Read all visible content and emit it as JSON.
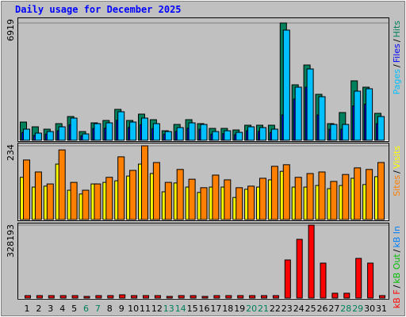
{
  "title": "Daily usage for December 2025",
  "chart_data": [
    {
      "type": "bar",
      "ylim": [
        0,
        6919
      ],
      "yticks": [
        6919
      ],
      "legend_separator": "/",
      "series": [
        {
          "name": "Hits",
          "color": "#00805c",
          "values": [
            1075,
            795,
            655,
            982,
            1402,
            514,
            1028,
            1169,
            1823,
            1169,
            1543,
            1215,
            561,
            935,
            1215,
            982,
            701,
            701,
            608,
            888,
            888,
            888,
            6919,
            3272,
            4441,
            2711,
            982,
            1636,
            3506,
            3132,
            1589
          ]
        },
        {
          "name": "Files",
          "color": "#0000ff",
          "values": [
            460,
            290,
            360,
            560,
            920,
            260,
            690,
            720,
            1180,
            750,
            920,
            690,
            360,
            520,
            720,
            650,
            360,
            390,
            330,
            560,
            520,
            460,
            1496,
            2431,
            3132,
            1496,
            650,
            650,
            2030,
            2130,
            980
          ]
        },
        {
          "name": "Pages",
          "color": "#00c0ff",
          "values": [
            655,
            421,
            514,
            795,
            1309,
            374,
            982,
            1028,
            1683,
            1075,
            1309,
            982,
            514,
            748,
            1028,
            935,
            514,
            561,
            467,
            795,
            748,
            655,
            6498,
            3132,
            4207,
            2571,
            935,
            935,
            2898,
            3039,
            1402
          ]
        }
      ]
    },
    {
      "type": "bar",
      "ylim": [
        0,
        234
      ],
      "yticks": [
        234
      ],
      "legend_separator": "/",
      "series": [
        {
          "name": "Visits",
          "color": "#ffff00",
          "values": [
            134,
            103,
            106,
            176,
            93,
            81,
            113,
            118,
            123,
            138,
            176,
            146,
            88,
            116,
            103,
            86,
            103,
            103,
            70,
            96,
            103,
            126,
            153,
            103,
            103,
            108,
            98,
            108,
            131,
            111,
            136
          ]
        },
        {
          "name": "Sites",
          "color": "#ff8000",
          "values": [
            189,
            151,
            113,
            221,
            118,
            93,
            113,
            134,
            199,
            156,
            234,
            181,
            118,
            159,
            128,
            101,
            141,
            126,
            101,
            106,
            131,
            169,
            174,
            134,
            146,
            151,
            121,
            143,
            164,
            159,
            181
          ]
        }
      ]
    },
    {
      "type": "bar",
      "ylim": [
        0,
        328193
      ],
      "yticks": [
        328193
      ],
      "legend_separator": "/",
      "categories": [
        "1",
        "2",
        "3",
        "4",
        "5",
        "6",
        "7",
        "8",
        "9",
        "10",
        "11",
        "12",
        "13",
        "14",
        "15",
        "16",
        "17",
        "18",
        "19",
        "20",
        "21",
        "22",
        "23",
        "24",
        "25",
        "26",
        "27",
        "28",
        "29",
        "30",
        "31"
      ],
      "category_colors": [
        "#000000",
        "#000000",
        "#000000",
        "#000000",
        "#000000",
        "#00805c",
        "#00805c",
        "#000000",
        "#000000",
        "#000000",
        "#000000",
        "#000000",
        "#00805c",
        "#00805c",
        "#000000",
        "#000000",
        "#000000",
        "#000000",
        "#000000",
        "#00805c",
        "#00805c",
        "#000000",
        "#000000",
        "#000000",
        "#000000",
        "#000000",
        "#000000",
        "#00805c",
        "#00805c",
        "#000000",
        "#000000"
      ],
      "series": [
        {
          "name": "kB F",
          "color": "#ff0000",
          "values": [
            10700,
            10700,
            10700,
            10700,
            10700,
            7100,
            10700,
            10700,
            14300,
            10700,
            10700,
            10700,
            7100,
            10700,
            10700,
            7100,
            10700,
            10700,
            10700,
            10700,
            10700,
            10700,
            171200,
            264000,
            328193,
            157000,
            21400,
            21400,
            178300,
            157000,
            10700
          ]
        }
      ],
      "legend_extra": [
        {
          "name": "kB Out",
          "color": "#00c000"
        },
        {
          "name": "kB In",
          "color": "#0080ff"
        }
      ]
    }
  ]
}
